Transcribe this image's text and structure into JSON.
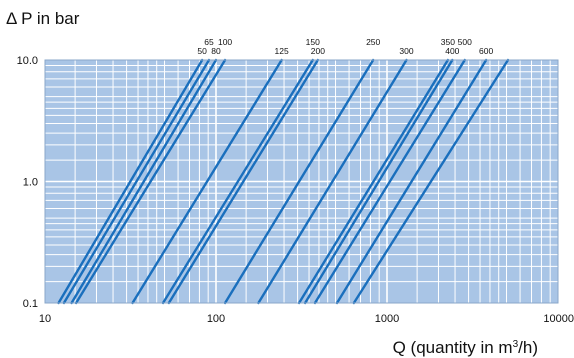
{
  "chart_data": {
    "type": "line",
    "title": "",
    "ylabel": "Δ P in bar",
    "xlabel": {
      "prefix": "Q (quantity in m",
      "sup": "3",
      "suffix": "/h)"
    },
    "x_scale": "log",
    "y_scale": "log",
    "xlim": [
      10,
      10000
    ],
    "ylim": [
      0.1,
      10
    ],
    "x_ticks": [
      {
        "value": 10,
        "label": "10"
      },
      {
        "value": 100,
        "label": "100"
      },
      {
        "value": 1000,
        "label": "1000"
      },
      {
        "value": 10000,
        "label": "10000"
      }
    ],
    "y_ticks": [
      {
        "value": 0.1,
        "label": "0.1"
      },
      {
        "value": 1,
        "label": "1.0"
      },
      {
        "value": 10,
        "label": "10.0"
      }
    ],
    "grid": true,
    "background_color": "#a9c5e6",
    "grid_color": "#ffffff",
    "line_color": "#1a6fbd",
    "series": [
      {
        "name": "50",
        "points": [
          [
            12.0,
            0.1
          ],
          [
            83.0,
            10
          ]
        ]
      },
      {
        "name": "65",
        "points": [
          [
            12.9,
            0.1
          ],
          [
            91.0,
            10
          ]
        ]
      },
      {
        "name": "80",
        "points": [
          [
            14.3,
            0.1
          ],
          [
            100.0,
            10
          ]
        ]
      },
      {
        "name": "100",
        "points": [
          [
            15.2,
            0.1
          ],
          [
            113.0,
            10
          ]
        ]
      },
      {
        "name": "125",
        "points": [
          [
            32.5,
            0.1
          ],
          [
            242.0,
            10
          ]
        ]
      },
      {
        "name": "150",
        "points": [
          [
            49.0,
            0.1
          ],
          [
            368.0,
            10
          ]
        ]
      },
      {
        "name": "200",
        "points": [
          [
            53.0,
            0.1
          ],
          [
            394.0,
            10
          ]
        ]
      },
      {
        "name": "250",
        "points": [
          [
            113.0,
            0.1
          ],
          [
            830.0,
            10
          ]
        ]
      },
      {
        "name": "300",
        "points": [
          [
            177.0,
            0.1
          ],
          [
            1300.0,
            10
          ]
        ]
      },
      {
        "name": "350",
        "points": [
          [
            306.0,
            0.1
          ],
          [
            2270.0,
            10
          ]
        ]
      },
      {
        "name": "400",
        "points": [
          [
            332.0,
            0.1
          ],
          [
            2410.0,
            10
          ]
        ]
      },
      {
        "name": "500",
        "points": [
          [
            379.0,
            0.1
          ],
          [
            2850.0,
            10
          ]
        ]
      },
      {
        "name": "600",
        "points": [
          [
            510.0,
            0.1
          ],
          [
            3800.0,
            10
          ]
        ]
      },
      {
        "name": "",
        "points": [
          [
            640.0,
            0.1
          ],
          [
            5100.0,
            10
          ]
        ]
      }
    ],
    "series_label_order": [
      "50",
      "65",
      "80",
      "100",
      "125",
      "150",
      "200",
      "250",
      "300",
      "350",
      "400",
      "500",
      "600"
    ]
  }
}
